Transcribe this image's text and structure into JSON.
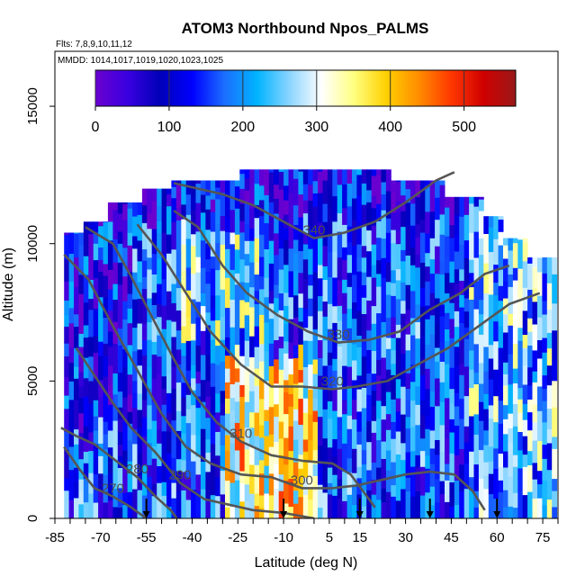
{
  "chart_data": {
    "type": "heatmap",
    "title": "ATOM3 Northbound Npos_PALMS",
    "subtitle_flights": "Flts: 7,8,9,10,11,12",
    "subtitle_dates": "MMDD: 1014,1017,1019,1020,1023,1025",
    "xlabel": "Latitude (deg N)",
    "ylabel": "Altitude (m)",
    "xlim": [
      -85,
      80
    ],
    "ylim": [
      0,
      17000
    ],
    "x_ticks": [
      -85,
      -70,
      -55,
      -40,
      -25,
      -10,
      5,
      15,
      30,
      45,
      60,
      75
    ],
    "x_tick_labels": [
      "-85",
      "-70",
      "-55",
      "-40",
      "-25",
      "-10",
      "5",
      "15",
      "30",
      "45",
      "60",
      "75"
    ],
    "y_ticks": [
      0,
      5000,
      10000,
      15000
    ],
    "y_tick_labels": [
      "0",
      "5000",
      "10000",
      "15000"
    ],
    "colorbar": {
      "range": [
        0,
        570
      ],
      "ticks": [
        0,
        100,
        200,
        300,
        400,
        500
      ],
      "tick_labels": [
        "0",
        "100",
        "200",
        "300",
        "400",
        "500"
      ],
      "colors": [
        "#6a00d0",
        "#3a00e0",
        "#0000b8",
        "#0000ff",
        "#1c6fff",
        "#00b4ff",
        "#8ad4ff",
        "#ffffff",
        "#ffff80",
        "#ffd000",
        "#ff8c00",
        "#ff3800",
        "#d00000",
        "#9a1818"
      ]
    },
    "theta_contours": [
      {
        "label": "270",
        "points": [
          [
            -82,
            2600
          ],
          [
            -77,
            1800
          ],
          [
            -72,
            1100
          ],
          [
            -66,
            800
          ],
          [
            -60,
            400
          ],
          [
            -55,
            0
          ]
        ]
      },
      {
        "label": "280",
        "points": [
          [
            -83,
            3300
          ],
          [
            -78,
            3000
          ],
          [
            -72,
            2700
          ],
          [
            -65,
            2100
          ],
          [
            -58,
            1500
          ],
          [
            -52,
            800
          ],
          [
            -47,
            300
          ],
          [
            -45,
            0
          ]
        ]
      },
      {
        "label": "290",
        "points": [
          [
            -78,
            6200
          ],
          [
            -72,
            5200
          ],
          [
            -66,
            4200
          ],
          [
            -60,
            3300
          ],
          [
            -52,
            2400
          ],
          [
            -44,
            1300
          ],
          [
            -36,
            700
          ],
          [
            -28,
            500
          ],
          [
            -20,
            300
          ],
          [
            -10,
            200
          ],
          [
            0,
            0
          ]
        ]
      },
      {
        "label": "300",
        "points": [
          [
            -82,
            9600
          ],
          [
            -74,
            8700
          ],
          [
            -66,
            7000
          ],
          [
            -58,
            5400
          ],
          [
            -50,
            3800
          ],
          [
            -42,
            2600
          ],
          [
            -34,
            2000
          ],
          [
            -24,
            1600
          ],
          [
            -14,
            1500
          ],
          [
            -4,
            1100
          ],
          [
            6,
            1100
          ],
          [
            14,
            1200
          ],
          [
            22,
            1400
          ],
          [
            30,
            1600
          ],
          [
            38,
            1700
          ],
          [
            46,
            1600
          ],
          [
            52,
            1000
          ],
          [
            56,
            300
          ]
        ]
      },
      {
        "label": "310",
        "points": [
          [
            -75,
            10600
          ],
          [
            -66,
            10000
          ],
          [
            -60,
            8800
          ],
          [
            -53,
            7300
          ],
          [
            -46,
            5800
          ],
          [
            -40,
            4600
          ],
          [
            -32,
            3500
          ],
          [
            -24,
            2800
          ],
          [
            -14,
            2300
          ],
          [
            -4,
            2100
          ],
          [
            6,
            2000
          ],
          [
            12,
            1600
          ],
          [
            16,
            1000
          ],
          [
            20,
            400
          ]
        ]
      },
      {
        "label": "320",
        "points": [
          [
            -58,
            10700
          ],
          [
            -50,
            9600
          ],
          [
            -42,
            8200
          ],
          [
            -34,
            6800
          ],
          [
            -24,
            5600
          ],
          [
            -14,
            4800
          ],
          [
            -4,
            4800
          ],
          [
            6,
            4700
          ],
          [
            14,
            4800
          ],
          [
            24,
            5000
          ],
          [
            34,
            5600
          ],
          [
            44,
            6200
          ],
          [
            54,
            7000
          ],
          [
            64,
            7800
          ],
          [
            74,
            8200
          ]
        ]
      },
      {
        "label": "330",
        "points": [
          [
            -46,
            11200
          ],
          [
            -38,
            10600
          ],
          [
            -30,
            9200
          ],
          [
            -22,
            8200
          ],
          [
            -12,
            7400
          ],
          [
            -2,
            6800
          ],
          [
            8,
            6400
          ],
          [
            18,
            6500
          ],
          [
            28,
            6800
          ],
          [
            38,
            7600
          ],
          [
            48,
            8200
          ],
          [
            56,
            8900
          ],
          [
            64,
            9200
          ]
        ]
      },
      {
        "label": "340",
        "points": [
          [
            -46,
            12200
          ],
          [
            -38,
            12000
          ],
          [
            -30,
            11800
          ],
          [
            -20,
            11400
          ],
          [
            -10,
            10800
          ],
          [
            0,
            10200
          ],
          [
            10,
            10400
          ],
          [
            20,
            10800
          ],
          [
            30,
            11500
          ],
          [
            40,
            12300
          ],
          [
            46,
            12600
          ]
        ]
      }
    ],
    "sounding_arrows_lat": [
      -55,
      -10,
      15,
      38,
      60
    ]
  }
}
